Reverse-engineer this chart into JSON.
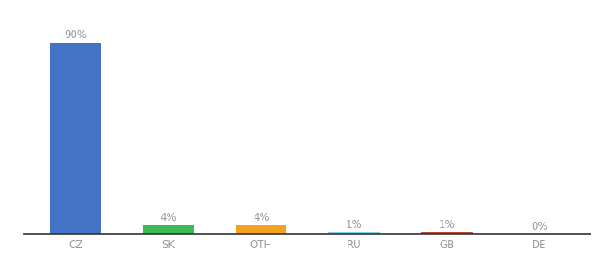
{
  "categories": [
    "CZ",
    "SK",
    "OTH",
    "RU",
    "GB",
    "DE"
  ],
  "values": [
    90,
    4,
    4,
    1,
    1,
    0
  ],
  "labels": [
    "90%",
    "4%",
    "4%",
    "1%",
    "1%",
    "0%"
  ],
  "bar_colors": [
    "#4472c4",
    "#3cba54",
    "#f4a21e",
    "#7ecef0",
    "#b94a2a",
    "#aaaaaa"
  ],
  "label_fontsize": 8.5,
  "tick_fontsize": 8.5,
  "label_color": "#999999",
  "tick_color": "#999999",
  "background_color": "#ffffff",
  "ylim": [
    0,
    100
  ],
  "bar_width": 0.55
}
